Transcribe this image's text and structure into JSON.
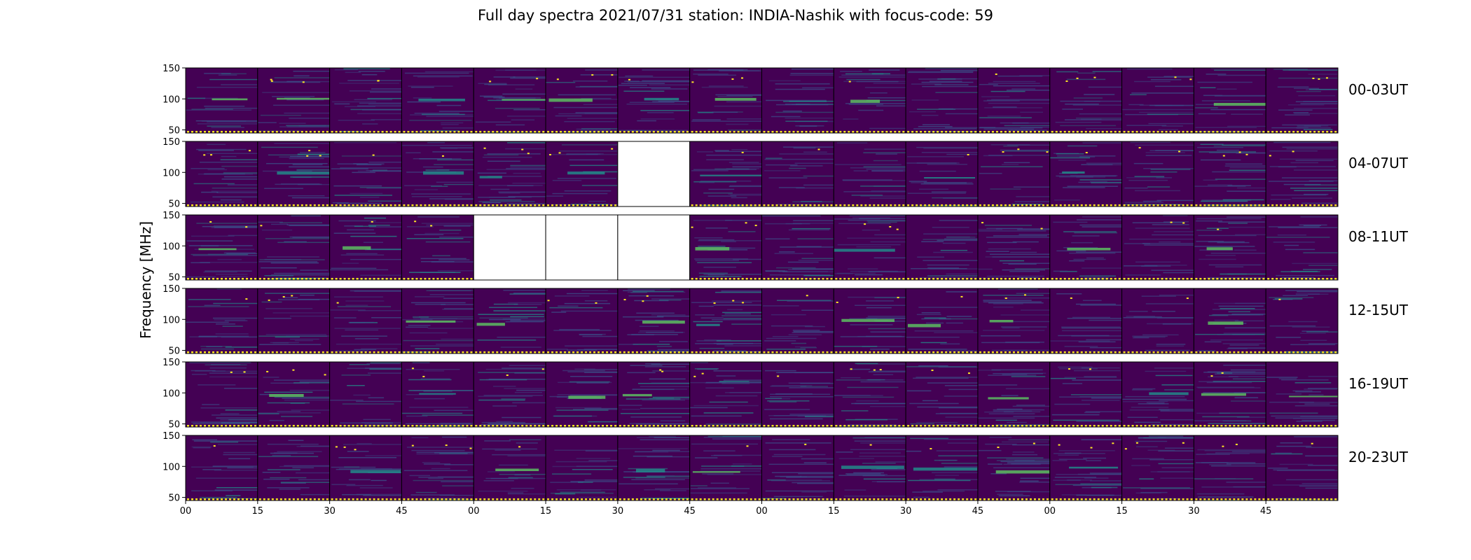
{
  "title": "Full day spectra 2021/07/31 station: INDIA-Nashik with focus-code: 59",
  "chart_data": {
    "type": "heatmap",
    "ylabel": "Frequency [MHz]",
    "ylim": [
      45,
      150
    ],
    "ytick_labels": [
      "150",
      "100",
      "50"
    ],
    "ytick_values": [
      150,
      100,
      50
    ],
    "xtick_labels": [
      "00",
      "15",
      "30",
      "45",
      "00",
      "15",
      "30",
      "45",
      "00",
      "15",
      "30",
      "45",
      "00",
      "15",
      "30",
      "45"
    ],
    "rows": [
      {
        "label": "00-03UT",
        "missing_panels": []
      },
      {
        "label": "04-07UT",
        "missing_panels": [
          6
        ]
      },
      {
        "label": "08-11UT",
        "missing_panels": [
          4,
          5,
          6
        ]
      },
      {
        "label": "12-15UT",
        "missing_panels": []
      },
      {
        "label": "16-19UT",
        "missing_panels": []
      },
      {
        "label": "20-23UT",
        "missing_panels": []
      }
    ],
    "panels_per_row": 16,
    "colormap": [
      "#440154",
      "#3b528b",
      "#21918c",
      "#5ec962",
      "#fde725"
    ],
    "baseline_marker_color": "#fde725"
  }
}
